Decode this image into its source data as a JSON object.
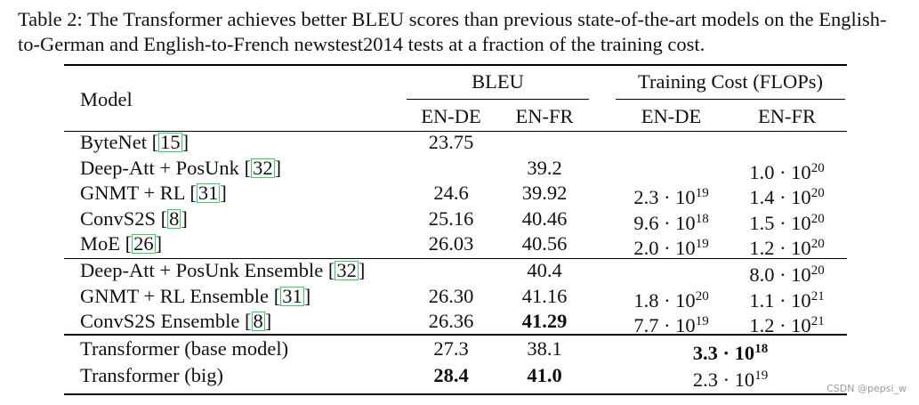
{
  "caption": "Table 2: The Transformer achieves better BLEU scores than previous state-of-the-art models on the English-to-German and English-to-French newstest2014 tests at a fraction of the training cost.",
  "table": {
    "header": {
      "model": "Model",
      "bleu": "BLEU",
      "cost": "Training Cost (FLOPs)",
      "bleu_en_de": "EN-DE",
      "bleu_en_fr": "EN-FR",
      "cost_en_de": "EN-DE",
      "cost_en_fr": "EN-FR"
    },
    "group1": [
      {
        "name": "ByteNet ",
        "ref": "15",
        "ref_close": "]",
        "ref_open": "[",
        "bleu_de": "23.75",
        "bleu_fr": "",
        "cost_de": "",
        "cost_fr": ""
      },
      {
        "name": "Deep-Att + PosUnk ",
        "ref": "32",
        "ref_close": "]",
        "ref_open": "[",
        "bleu_de": "",
        "bleu_fr": "39.2",
        "cost_de": "",
        "cost_fr": "1.0 · 10",
        "cost_fr_exp": "20"
      },
      {
        "name": "GNMT + RL ",
        "ref": "31",
        "ref_close": "]",
        "ref_open": "[",
        "bleu_de": "24.6",
        "bleu_fr": "39.92",
        "cost_de": "2.3 · 10",
        "cost_de_exp": "19",
        "cost_fr": "1.4 · 10",
        "cost_fr_exp": "20"
      },
      {
        "name": "ConvS2S ",
        "ref": "8",
        "ref_close": "]",
        "ref_open": "[",
        "bleu_de": "25.16",
        "bleu_fr": "40.46",
        "cost_de": "9.6 · 10",
        "cost_de_exp": "18",
        "cost_fr": "1.5 · 10",
        "cost_fr_exp": "20"
      },
      {
        "name": "MoE ",
        "ref": "26",
        "ref_close": "]",
        "ref_open": "[",
        "bleu_de": "26.03",
        "bleu_fr": "40.56",
        "cost_de": "2.0 · 10",
        "cost_de_exp": "19",
        "cost_fr": "1.2 · 10",
        "cost_fr_exp": "20"
      }
    ],
    "group2": [
      {
        "name": "Deep-Att + PosUnk Ensemble ",
        "ref": "32",
        "ref_close": "]",
        "ref_open": "[",
        "bleu_de": "",
        "bleu_fr": "40.4",
        "cost_de": "",
        "cost_fr": "8.0 · 10",
        "cost_fr_exp": "20"
      },
      {
        "name": "GNMT + RL Ensemble ",
        "ref": "31",
        "ref_close": "]",
        "ref_open": "[",
        "bleu_de": "26.30",
        "bleu_fr": "41.16",
        "cost_de": "1.8 · 10",
        "cost_de_exp": "20",
        "cost_fr": "1.1 · 10",
        "cost_fr_exp": "21"
      },
      {
        "name": "ConvS2S Ensemble ",
        "ref": "8",
        "ref_close": "]",
        "ref_open": "[",
        "bleu_de": "26.36",
        "bleu_fr": "41.29",
        "cost_de": "7.7 · 10",
        "cost_de_exp": "19",
        "cost_fr": "1.2 · 10",
        "cost_fr_exp": "21"
      }
    ],
    "group3": [
      {
        "name": "Transformer (base model)",
        "bleu_de": "27.3",
        "bleu_fr": "38.1",
        "cost_merged": "3.3 · 10",
        "cost_merged_exp": "18"
      },
      {
        "name": "Transformer (big)",
        "bleu_de": "28.4",
        "bleu_fr": "41.0",
        "cost_merged": "2.3 · 10",
        "cost_merged_exp": "19"
      }
    ]
  },
  "watermark": "CSDN @pepsi_w"
}
